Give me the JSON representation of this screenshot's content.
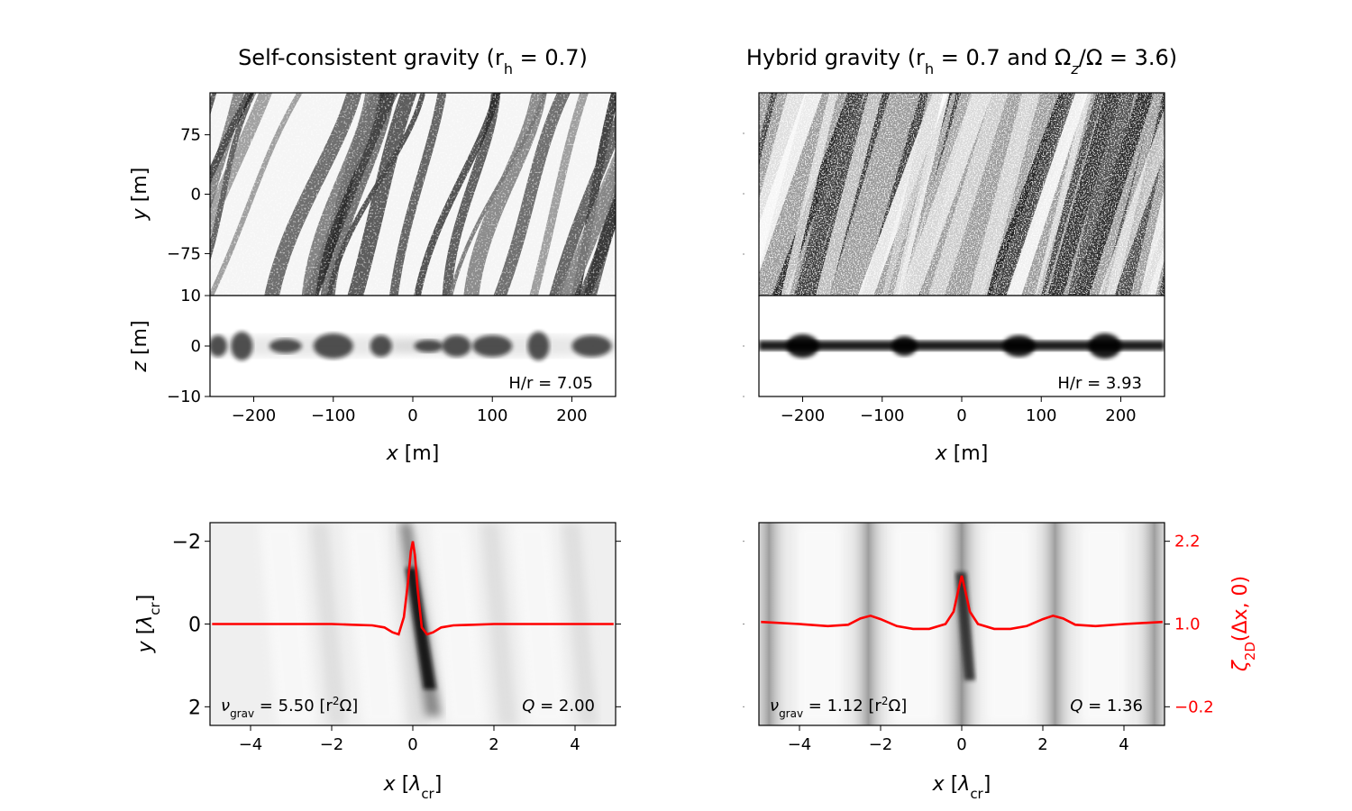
{
  "panels_top": [
    {
      "title": "Self-consistent gravity (r_h = 0.7)",
      "title_parts": {
        "pre": "Self-consistent gravity (r",
        "sub": "h",
        "post": " = 0.7)"
      },
      "ylabel_top": {
        "var": "y",
        "unit": " [m]"
      },
      "ylabel_side": {
        "var": "z",
        "unit": " [m]"
      },
      "xlabel": {
        "var": "x",
        "unit": " [m]"
      },
      "aspect_label": "H/r = 7.05",
      "xlim": [
        -255,
        255
      ],
      "xticks": [
        -200,
        -100,
        0,
        100,
        200
      ],
      "ylim_top": [
        -128,
        128
      ],
      "yticks_top": [
        75,
        0,
        -75
      ],
      "ylim_side": [
        -10,
        10
      ],
      "yticks_side": [
        10,
        0,
        -10
      ]
    },
    {
      "title": "Hybrid gravity (r_h = 0.7 and Ω_z/Ω = 3.6)",
      "title_parts": {
        "pre": "Hybrid gravity (r",
        "sub": "h",
        "mid": " = 0.7 and Ω",
        "sub2": "z",
        "post": "/Ω = 3.6)"
      },
      "xlabel": {
        "var": "x",
        "unit": " [m]"
      },
      "aspect_label": "H/r = 3.93",
      "xlim": [
        -255,
        255
      ],
      "xticks": [
        -200,
        -100,
        0,
        100,
        200
      ]
    }
  ],
  "chart_data": [
    {
      "type": "heatmap",
      "title": "Self-consistent gravity (r_h = 0.7)",
      "xlabel": "x [m]",
      "ylabel": "y [m]",
      "xlim": [
        -255,
        255
      ],
      "ylim": [
        -128,
        128
      ],
      "xticks": [
        -200,
        -100,
        0,
        100,
        200
      ],
      "yticks": [
        -75,
        0,
        75
      ]
    },
    {
      "type": "heatmap",
      "xlabel": "x [m]",
      "ylabel": "z [m]",
      "xlim": [
        -255,
        255
      ],
      "ylim": [
        -10,
        10
      ],
      "yticks": [
        -10,
        0,
        10
      ],
      "annotation": "H/r = 7.05"
    },
    {
      "type": "heatmap",
      "title": "Hybrid gravity (r_h = 0.7 and Ω_z/Ω = 3.6)",
      "xlim": [
        -255,
        255
      ],
      "ylim": [
        -128,
        128
      ]
    },
    {
      "type": "heatmap",
      "xlabel": "x [m]",
      "xlim": [
        -255,
        255
      ],
      "ylim": [
        -10,
        10
      ],
      "annotation": "H/r = 3.93"
    },
    {
      "type": "line",
      "xlabel": "x [λcr]",
      "ylabel": "y [λcr]",
      "xlim": [
        -5,
        5
      ],
      "ylim": [
        -2.45,
        2.45
      ],
      "xticks": [
        -4,
        -2,
        0,
        2,
        4
      ],
      "yticks": [
        -2,
        0,
        2
      ],
      "annotations": [
        "ν_grav = 5.50 [r²Ω]",
        "Q = 2.00"
      ],
      "series": [
        {
          "color": "#ff0000",
          "axis": "right (ζ2D scale)",
          "x": [
            -4.95,
            -4,
            -3,
            -2,
            -1.5,
            -1,
            -0.7,
            -0.5,
            -0.35,
            -0.22,
            -0.12,
            -0.05,
            0,
            0.05,
            0.12,
            0.22,
            0.35,
            0.5,
            0.7,
            1,
            1.5,
            2,
            3,
            4,
            4.95
          ],
          "y": [
            1.0,
            1.0,
            1.0,
            1.0,
            0.99,
            0.98,
            0.95,
            0.88,
            0.85,
            1.1,
            1.6,
            2.05,
            2.2,
            2.0,
            1.5,
            0.95,
            0.85,
            0.88,
            0.95,
            0.98,
            0.99,
            1.0,
            1.0,
            1.0,
            1.0
          ]
        }
      ]
    },
    {
      "type": "line",
      "xlabel": "x [λcr]",
      "ylabel": "ζ2D(Δx, 0)",
      "xlim": [
        -5,
        5
      ],
      "ylim": [
        -0.47,
        2.47
      ],
      "xticks": [
        -4,
        -2,
        0,
        2,
        4
      ],
      "yticks": [
        2.2,
        1.0,
        -0.2
      ],
      "annotations": [
        "ν_grav = 1.12 [r²Ω]",
        "Q = 1.36"
      ],
      "series": [
        {
          "color": "#ff0000",
          "axis": "right (ζ2D scale)",
          "x": [
            -4.95,
            -4,
            -3.3,
            -2.8,
            -2.5,
            -2.25,
            -2,
            -1.6,
            -1.2,
            -0.8,
            -0.4,
            -0.2,
            -0.08,
            0,
            0.08,
            0.2,
            0.4,
            0.8,
            1.2,
            1.6,
            2,
            2.25,
            2.5,
            2.8,
            3.3,
            4,
            4.95
          ],
          "y": [
            1.03,
            1.0,
            0.97,
            0.99,
            1.08,
            1.12,
            1.07,
            0.97,
            0.93,
            0.93,
            1.0,
            1.18,
            1.5,
            1.7,
            1.5,
            1.18,
            1.0,
            0.93,
            0.93,
            0.97,
            1.07,
            1.12,
            1.08,
            0.99,
            0.97,
            1.0,
            1.03
          ]
        }
      ]
    }
  ],
  "bottom_left": {
    "ylabel": {
      "var": "y",
      "unit_pre": " [",
      "lam": "λ",
      "sub": "cr",
      "unit_post": "]"
    },
    "xlabel": {
      "var": "x",
      "unit_pre": " [",
      "lam": "λ",
      "sub": "cr",
      "unit_post": "]"
    },
    "nu_label": {
      "nu": "ν",
      "sub": "grav",
      "val": " = 5.50 [r",
      "sup": "2",
      "tail": "Ω]"
    },
    "q_label": {
      "var": "Q",
      "val": " = 2.00"
    },
    "xticks": [
      "−4",
      "−2",
      "0",
      "2",
      "4"
    ],
    "yticks": [
      "2",
      "0",
      "−2"
    ]
  },
  "bottom_right": {
    "xlabel": {
      "var": "x",
      "unit_pre": " [",
      "lam": "λ",
      "sub": "cr",
      "unit_post": "]"
    },
    "nu_label": {
      "nu": "ν",
      "sub": "grav",
      "val": " = 1.12 [r",
      "sup": "2",
      "tail": "Ω]"
    },
    "q_label": {
      "var": "Q",
      "val": " = 1.36"
    },
    "xticks": [
      "−4",
      "−2",
      "0",
      "2",
      "4"
    ],
    "right_ylabel": {
      "zeta": "ζ",
      "sub": "2D",
      "tail": "(Δx, 0)"
    },
    "right_yticks": [
      "2.2",
      "1.0",
      "−0.2"
    ]
  },
  "colors": {
    "curve": "#ff0000",
    "axis": "#000000",
    "background": "#ffffff"
  }
}
